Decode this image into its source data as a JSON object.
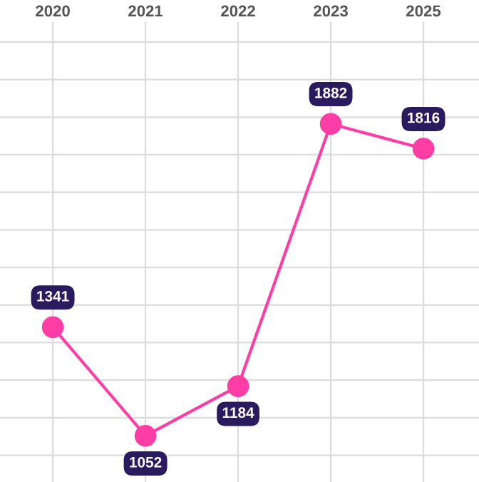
{
  "chart_data": {
    "type": "line",
    "categories": [
      "2020",
      "2021",
      "2022",
      "2023",
      "2025"
    ],
    "series": [
      {
        "color": "#ff3ea5",
        "values": [
          1341,
          1052,
          1184,
          1882,
          1816
        ]
      }
    ],
    "ylim": [
      929,
      2154
    ],
    "yticks": [
      {
        "value": 1000,
        "label": null
      },
      {
        "value": 1100,
        "label": null
      },
      {
        "value": 1200,
        "label": null
      },
      {
        "value": 1300,
        "label": null
      },
      {
        "value": 1400,
        "label": null
      },
      {
        "value": 1500,
        "label": null
      },
      {
        "value": 1600,
        "label": null
      },
      {
        "value": 1700,
        "label": null
      },
      {
        "value": 1800,
        "label": null
      },
      {
        "value": 1900,
        "label": null
      },
      {
        "value": 2000,
        "label": null
      },
      {
        "value": 2100,
        "label": null
      }
    ],
    "grid": true,
    "marker": "circle",
    "line_style": "solid",
    "data_labels": true,
    "tick_labels": "x"
  }
}
